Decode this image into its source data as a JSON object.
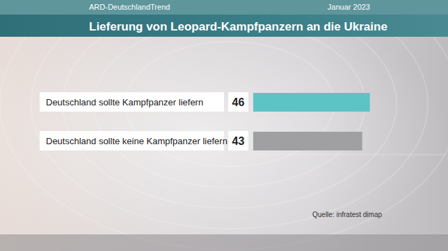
{
  "chart_data": {
    "type": "bar",
    "orientation": "horizontal",
    "title": "Lieferung von Leopard-Kampfpanzern an die Ukraine",
    "subtitle": "ARD-DeutschlandTrend",
    "annotations": [
      "Januar 2023",
      "Quelle: infratest dimap"
    ],
    "categories": [
      "Deutschland sollte Kampfpanzer liefern",
      "Deutschland sollte keine Kampfpanzer liefern"
    ],
    "values": [
      46,
      43
    ],
    "colors": [
      "#5ec3c5",
      "#a0a0a2"
    ],
    "xlim": [
      0,
      76
    ],
    "data_labels": true,
    "tick_labels": "y",
    "grid": false
  }
}
